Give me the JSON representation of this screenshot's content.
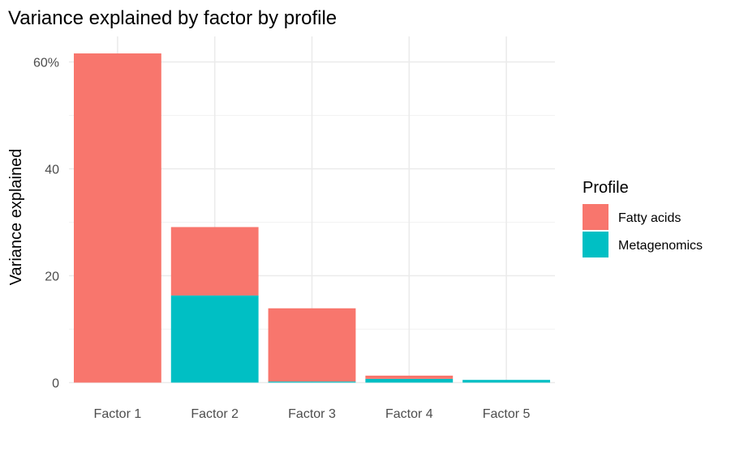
{
  "chart_data": {
    "type": "bar",
    "stacked": true,
    "title": "Variance explained by factor by profile",
    "xlabel": "",
    "ylabel": "Variance explained",
    "categories": [
      "Factor 1",
      "Factor 2",
      "Factor 3",
      "Factor 4",
      "Factor 5"
    ],
    "series": [
      {
        "name": "Metagenomics",
        "color": "#00BFC4",
        "values": [
          0.0,
          16.3,
          0.2,
          0.7,
          0.5
        ]
      },
      {
        "name": "Fatty acids",
        "color": "#F8766D",
        "values": [
          61.6,
          12.8,
          13.7,
          0.6,
          0.0
        ]
      }
    ],
    "ylim": [
      0,
      61.6
    ],
    "yticks": [
      {
        "value": 0,
        "label": "0"
      },
      {
        "value": 20,
        "label": "20"
      },
      {
        "value": 40,
        "label": "40"
      },
      {
        "value": 60,
        "label": "60%"
      }
    ],
    "y_minor_ticks": [
      10,
      30,
      50
    ],
    "grid": true,
    "legend": {
      "title": "Profile",
      "position": "right",
      "entries": [
        {
          "name": "Fatty acids",
          "color": "#F8766D"
        },
        {
          "name": "Metagenomics",
          "color": "#00BFC4"
        }
      ]
    }
  }
}
